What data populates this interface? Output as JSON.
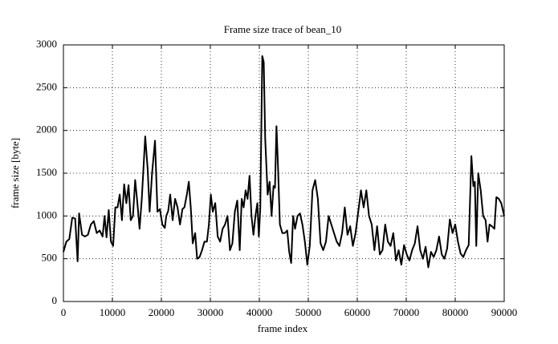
{
  "chart_data": {
    "type": "line",
    "title": "Frame size trace of bean_10",
    "x_label": "frame index",
    "y_label": "frame size [byte]",
    "xlim": [
      0,
      90000
    ],
    "ylim": [
      0,
      3000
    ],
    "xticks": [
      0,
      10000,
      20000,
      30000,
      40000,
      50000,
      60000,
      70000,
      80000,
      90000
    ],
    "yticks": [
      0,
      500,
      1000,
      1500,
      2000,
      2500,
      3000
    ],
    "grid": true,
    "x": [
      0,
      600,
      1200,
      1800,
      2400,
      2900,
      3200,
      3800,
      4400,
      5000,
      5600,
      6200,
      6800,
      7400,
      8000,
      8400,
      8800,
      9250,
      9700,
      10150,
      10600,
      11050,
      11500,
      11950,
      12400,
      12850,
      13300,
      13750,
      14200,
      14650,
      15100,
      15550,
      16000,
      16700,
      17200,
      17600,
      18100,
      18700,
      19200,
      19700,
      20200,
      20700,
      21000,
      21400,
      21800,
      22300,
      22800,
      23300,
      23800,
      24300,
      24700,
      25200,
      25600,
      26000,
      26400,
      26900,
      27300,
      27800,
      28300,
      28800,
      29300,
      29700,
      30100,
      30500,
      31000,
      31500,
      32000,
      32500,
      33000,
      33500,
      34000,
      34500,
      35000,
      35500,
      36000,
      36400,
      36800,
      37200,
      37600,
      38000,
      38400,
      38800,
      39200,
      39600,
      39900,
      40200,
      40600,
      40900,
      41200,
      41700,
      42100,
      42500,
      42900,
      43200,
      43500,
      43800,
      44200,
      44700,
      45200,
      45700,
      46100,
      46500,
      46900,
      47300,
      47800,
      48300,
      48800,
      49300,
      49800,
      50300,
      50850,
      51400,
      51950,
      52500,
      53050,
      53600,
      54150,
      54700,
      55250,
      55800,
      56350,
      56900,
      57450,
      58000,
      58550,
      59100,
      59650,
      60200,
      60750,
      61300,
      61850,
      62400,
      62950,
      63500,
      64050,
      64600,
      65150,
      65700,
      66250,
      66800,
      67350,
      67900,
      68450,
      69000,
      69550,
      70100,
      70650,
      71200,
      71750,
      72300,
      72850,
      73400,
      73950,
      74500,
      75050,
      75600,
      76150,
      76700,
      77250,
      77800,
      78350,
      78900,
      79450,
      80000,
      80550,
      81100,
      81650,
      82200,
      82750,
      83300,
      83700,
      84000,
      84300,
      84700,
      85200,
      85700,
      86200,
      86600,
      87000,
      87500,
      88000,
      88400,
      88900,
      89400,
      90000
    ],
    "series": [
      {
        "color": "#000000",
        "values": [
          580,
          700,
          730,
          980,
          970,
          470,
          1030,
          780,
          760,
          780,
          900,
          940,
          800,
          830,
          760,
          1000,
          750,
          1070,
          700,
          650,
          1100,
          1100,
          1250,
          950,
          1370,
          1150,
          1360,
          950,
          1000,
          1420,
          1150,
          850,
          1200,
          1930,
          1550,
          1050,
          1500,
          1880,
          1050,
          1080,
          900,
          860,
          1000,
          1060,
          1250,
          950,
          1200,
          1100,
          900,
          1080,
          1100,
          1250,
          1400,
          1100,
          680,
          800,
          500,
          520,
          600,
          700,
          700,
          900,
          1250,
          1050,
          1150,
          760,
          700,
          850,
          900,
          1000,
          600,
          680,
          1050,
          1180,
          600,
          1200,
          1100,
          1300,
          1200,
          1470,
          1000,
          780,
          1000,
          1150,
          760,
          1100,
          2870,
          2800,
          1900,
          1250,
          1400,
          1000,
          1350,
          1330,
          2050,
          1600,
          900,
          800,
          800,
          830,
          580,
          450,
          1000,
          850,
          1000,
          1030,
          900,
          700,
          430,
          650,
          1300,
          1420,
          1200,
          680,
          600,
          700,
          1000,
          900,
          800,
          700,
          650,
          800,
          1100,
          780,
          880,
          650,
          800,
          1050,
          1300,
          1100,
          1300,
          1000,
          900,
          600,
          880,
          550,
          600,
          900,
          700,
          650,
          800,
          480,
          600,
          430,
          660,
          550,
          480,
          600,
          680,
          880,
          600,
          500,
          640,
          400,
          580,
          520,
          600,
          760,
          550,
          500,
          620,
          960,
          800,
          900,
          700,
          560,
          520,
          600,
          660,
          1700,
          1350,
          1400,
          650,
          1500,
          1300,
          1000,
          950,
          700,
          900,
          880,
          850,
          1220,
          1200,
          1150,
          1000
        ]
      }
    ]
  }
}
